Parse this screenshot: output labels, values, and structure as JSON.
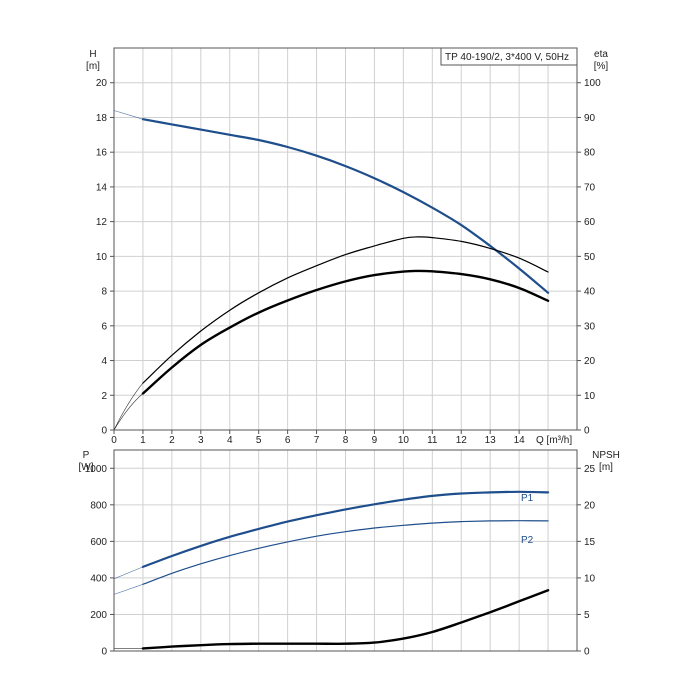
{
  "chart_data": [
    {
      "type": "line",
      "name": "head-efficiency-panel",
      "title": "TP 40-190/2, 3*400 V, 50Hz",
      "left_axis": {
        "label_top": "H",
        "label_unit": "[m]",
        "ylim": [
          0,
          22
        ],
        "ticks": [
          0,
          2,
          4,
          6,
          8,
          10,
          12,
          14,
          16,
          18,
          20
        ]
      },
      "right_axis": {
        "label_top": "eta",
        "label_unit": "[%]",
        "ylim": [
          0,
          110
        ],
        "ticks": [
          0,
          10,
          20,
          30,
          40,
          50,
          60,
          70,
          80,
          90,
          100
        ]
      },
      "x_axis": {
        "label": "Q [m³/h]",
        "xlim": [
          0,
          16
        ],
        "ticks": [
          0,
          1,
          2,
          3,
          4,
          5,
          6,
          7,
          8,
          9,
          10,
          11,
          12,
          13,
          14
        ]
      },
      "grid": true,
      "series": [
        {
          "key": "H",
          "axis": "left",
          "color": "#1f4e8c",
          "width": 2.2,
          "x": [
            1,
            2,
            3,
            4,
            5,
            6,
            7,
            8,
            9,
            10,
            11,
            12,
            13,
            14,
            15
          ],
          "y": [
            17.9,
            17.6,
            17.3,
            17.0,
            16.7,
            16.3,
            15.8,
            15.2,
            14.5,
            13.7,
            12.8,
            11.8,
            10.6,
            9.3,
            7.9
          ],
          "ext_x": [
            0,
            1
          ],
          "ext_y": [
            18.4,
            17.9
          ]
        },
        {
          "key": "eta",
          "axis": "right",
          "color": "#000000",
          "width": 1.2,
          "x": [
            1,
            2,
            3,
            4,
            5,
            6,
            7,
            8,
            9,
            10,
            10.5,
            11,
            12,
            13,
            14,
            15
          ],
          "y": [
            13.5,
            21.5,
            28.5,
            34.5,
            39.5,
            43.8,
            47.3,
            50.5,
            53.0,
            55.2,
            55.6,
            55.4,
            54.3,
            52.3,
            49.5,
            45.5
          ],
          "ext_x": [
            0,
            1
          ],
          "ext_y": [
            0,
            13.5
          ]
        },
        {
          "key": "eta-total",
          "axis": "right",
          "color": "#000000",
          "width": 2.4,
          "x": [
            1,
            2,
            3,
            4,
            5,
            6,
            7,
            8,
            9,
            10,
            10.5,
            11,
            12,
            13,
            14,
            15
          ],
          "y": [
            10.5,
            18.0,
            24.5,
            29.5,
            33.8,
            37.3,
            40.3,
            42.8,
            44.6,
            45.6,
            45.8,
            45.7,
            44.9,
            43.4,
            40.9,
            37.2
          ],
          "ext_x": [
            0,
            1
          ],
          "ext_y": [
            0,
            10.5
          ]
        }
      ]
    },
    {
      "type": "line",
      "name": "power-npsh-panel",
      "left_axis": {
        "label_top": "P",
        "label_unit": "[W]",
        "ylim": [
          0,
          1100
        ],
        "ticks": [
          0,
          200,
          400,
          600,
          800,
          1000
        ]
      },
      "right_axis": {
        "label_top": "NPSH",
        "label_unit": "[m]",
        "ylim": [
          0,
          27.5
        ],
        "ticks": [
          0,
          5,
          10,
          15,
          20,
          25
        ]
      },
      "x_axis": {
        "xlim": [
          0,
          16
        ]
      },
      "grid": true,
      "series": [
        {
          "key": "P1",
          "name": "P1",
          "axis": "left",
          "color": "#1f4e8c",
          "width": 2.2,
          "x": [
            1,
            2,
            3,
            4,
            5,
            6,
            7,
            8,
            9,
            10,
            11,
            12,
            13,
            14,
            15
          ],
          "y": [
            460,
            520,
            575,
            625,
            668,
            708,
            743,
            775,
            803,
            828,
            849,
            862,
            868,
            871,
            868
          ],
          "ext_x": [
            0,
            1
          ],
          "ext_y": [
            395,
            460
          ]
        },
        {
          "key": "P2",
          "name": "P2",
          "axis": "left",
          "color": "#1f4e8c",
          "width": 1.2,
          "x": [
            1,
            2,
            3,
            4,
            5,
            6,
            7,
            8,
            9,
            10,
            11,
            12,
            13,
            14,
            15
          ],
          "y": [
            365,
            425,
            477,
            522,
            562,
            597,
            628,
            653,
            673,
            688,
            700,
            708,
            712,
            713,
            712
          ],
          "ext_x": [
            0,
            1
          ],
          "ext_y": [
            310,
            365
          ]
        },
        {
          "key": "NPSH",
          "axis": "right",
          "color": "#000000",
          "width": 2.4,
          "x": [
            1,
            2,
            3,
            4,
            5,
            6,
            7,
            8,
            9,
            10,
            11,
            12,
            13,
            14,
            15
          ],
          "y": [
            0.35,
            0.6,
            0.8,
            0.95,
            1.0,
            1.0,
            1.0,
            1.0,
            1.15,
            1.7,
            2.6,
            3.9,
            5.3,
            6.8,
            8.3
          ],
          "ext_x": [
            0,
            1
          ],
          "ext_y": [
            0.35,
            0.35
          ]
        }
      ]
    }
  ]
}
